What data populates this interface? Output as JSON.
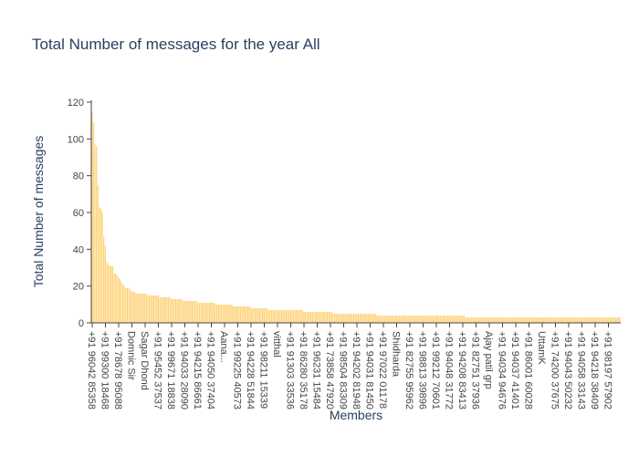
{
  "chart_data": {
    "type": "bar",
    "title": "Total Number of messages for the year All",
    "xlabel": "Members",
    "ylabel": "Total Number of messages",
    "ylim": [
      0,
      121
    ],
    "yticks": [
      0,
      20,
      40,
      60,
      80,
      100,
      120
    ],
    "grid": false,
    "bar_color": "#ffd37b",
    "bar_edge_color": "#ffffff",
    "values": [
      115,
      109,
      97,
      96,
      75,
      63,
      62,
      60,
      47,
      42,
      33,
      32,
      31,
      31,
      31,
      27,
      27,
      26,
      25,
      24,
      22,
      21,
      20,
      19,
      19,
      19,
      18,
      17,
      17,
      17,
      16,
      16,
      16,
      16,
      16,
      16,
      16,
      16,
      15,
      15,
      15,
      15,
      15,
      15,
      15,
      15,
      14,
      14,
      14,
      14,
      14,
      14,
      14,
      14,
      13,
      13,
      13,
      13,
      13,
      13,
      13,
      13,
      12,
      12,
      12,
      12,
      12,
      12,
      12,
      12,
      12,
      12,
      11,
      11,
      11,
      11,
      11,
      11,
      11,
      11,
      11,
      11,
      11,
      11,
      10,
      10,
      10,
      10,
      10,
      10,
      10,
      10,
      10,
      10,
      10,
      10,
      9,
      9,
      9,
      9,
      9,
      9,
      9,
      9,
      9,
      9,
      9,
      9,
      8,
      8,
      8,
      8,
      8,
      8,
      8,
      8,
      8,
      8,
      8,
      8,
      7,
      7,
      7,
      7,
      7,
      7,
      7,
      7,
      7,
      7,
      7,
      7,
      7,
      7,
      7,
      7,
      7,
      7,
      7,
      7,
      7,
      7,
      7,
      7,
      6,
      6,
      6,
      6,
      6,
      6,
      6,
      6,
      6,
      6,
      6,
      6,
      6,
      6,
      6,
      6,
      6,
      6,
      6,
      6,
      5,
      5,
      5,
      5,
      5,
      5,
      5,
      5,
      5,
      5,
      5,
      5,
      5,
      5,
      5,
      5,
      5,
      5,
      5,
      5,
      5,
      5,
      5,
      5,
      5,
      5,
      5,
      5,
      5,
      5,
      4,
      4,
      4,
      4,
      4,
      4,
      4,
      4,
      4,
      4,
      4,
      4,
      4,
      4,
      4,
      4,
      4,
      4,
      4,
      4,
      4,
      4,
      4,
      4,
      4,
      4,
      4,
      4,
      4,
      4,
      4,
      4,
      4,
      4,
      4,
      4,
      4,
      4,
      4,
      4,
      4,
      4,
      4,
      4,
      4,
      4,
      4,
      4,
      4,
      4,
      4,
      4,
      4,
      4,
      4,
      4,
      4,
      4,
      4,
      4,
      3,
      3,
      3,
      3,
      3,
      3,
      3,
      3,
      3,
      3,
      3,
      3,
      3,
      3,
      3,
      3,
      3,
      3,
      3,
      3,
      3,
      3,
      3,
      3,
      3,
      3,
      3,
      3,
      3,
      3,
      3,
      3,
      3,
      3,
      3,
      3,
      3,
      3,
      3,
      3,
      3,
      3,
      3,
      3,
      3,
      3,
      3,
      3,
      3,
      3,
      3,
      3,
      3,
      3,
      3,
      3,
      3,
      3,
      3,
      3,
      3,
      3,
      3,
      3,
      3,
      3,
      3,
      3,
      3,
      3,
      3,
      3,
      3,
      3,
      3,
      3,
      3,
      3,
      3,
      3,
      3,
      3,
      3,
      3,
      3,
      3,
      3,
      3,
      3,
      3,
      3,
      3,
      3,
      3,
      3,
      3,
      3,
      3,
      3,
      3,
      3,
      3,
      3,
      3,
      3,
      3
    ],
    "category_tick_labels": [
      "+91 96042 85358",
      "+91 99300 18468",
      "+91 78678 95088",
      "Domnic Sir",
      "Sagar Dhond",
      "+91 95452 37537",
      "+91 99671 18838",
      "+91 94033 28090",
      "+91 94215 86661",
      "+91 94050 37404",
      "Aana...",
      "+91 99225 40573",
      "+91 94228 51844",
      "+91 98211 15339",
      "vitthal",
      "+91 91303 33536",
      "+91 86280 35178",
      "+91 96231 15484",
      "+91 73858 47920",
      "+91 98504 83309",
      "+91 94202 81948",
      "+91 94031 81450",
      "+91 97022 01178",
      "Shidharda",
      "+91 82755 95962",
      "+91 98813 39896",
      "+91 99212 70601",
      "+91 94048 31772",
      "+91 94208 83413",
      "+91 82751 37936",
      "Ajay patil grp",
      "+91 94034 94676",
      "+91 94037 41401",
      "+91 86001 60028",
      "UttamK",
      "+91 74200 37675",
      "+91 94043 50232",
      "+91 94058 33143",
      "+91 94218 38409",
      "+91 98197 57902"
    ]
  }
}
